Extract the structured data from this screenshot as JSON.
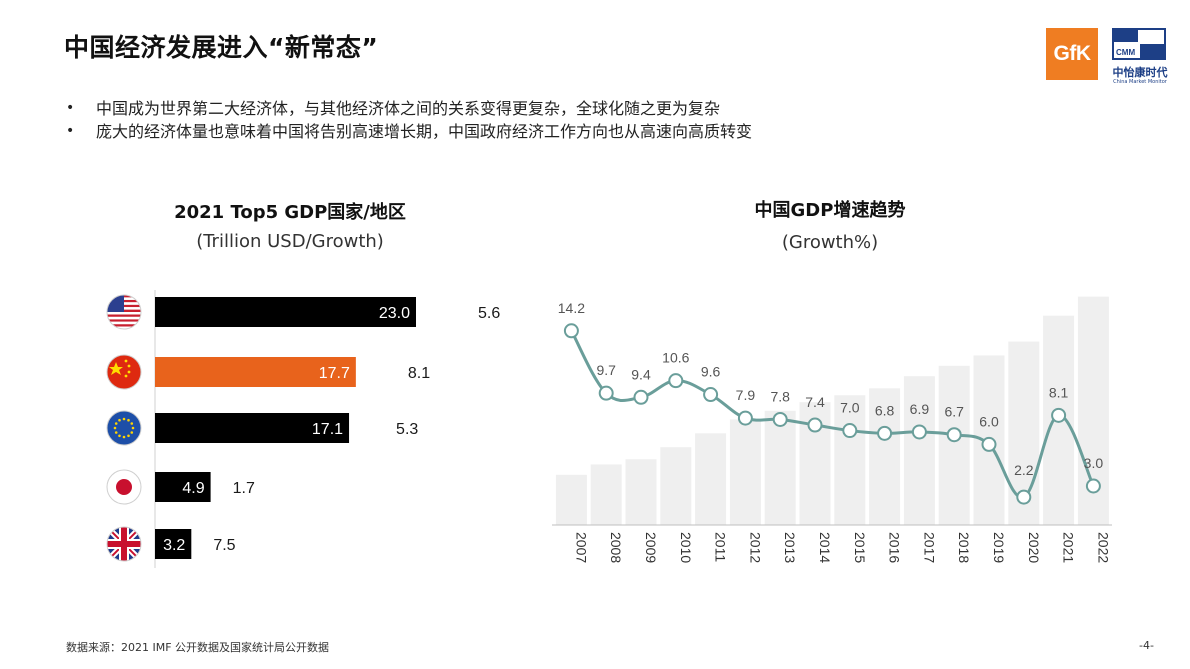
{
  "title": "中国经济发展进入“新常态”",
  "logos": {
    "gfk": "GfK",
    "cmm_abbr": "CMM",
    "cmm_name": "中怡康时代",
    "cmm_sub": "China Market Monitor"
  },
  "bullets": [
    "中国成为世界第二大经济体，与其他经济体之间的关系变得更复杂，全球化随之更为复杂",
    "庞大的经济体量也意味着中国将告别高速增长期，中国政府经济工作方向也从高速向高质转变"
  ],
  "footnote": "数据来源：2021 IMF 公开数据及国家统计局公开数据",
  "page_number": "-4-",
  "chart_data": [
    {
      "type": "bar",
      "title": "2021 Top5 GDP国家/地区",
      "subtitle": "(Trillion USD/Growth)",
      "orientation": "horizontal",
      "flag_icons": [
        "us-flag-icon",
        "china-flag-icon",
        "eu-flag-icon",
        "japan-flag-icon",
        "uk-flag-icon"
      ],
      "values": [
        23.0,
        17.7,
        17.1,
        4.9,
        3.2
      ],
      "value_labels": [
        "23.0",
        "17.7",
        "17.1",
        "4.9",
        "3.2"
      ],
      "growth_labels": [
        "5.6",
        "8.1",
        "5.3",
        "1.7",
        "7.5"
      ],
      "highlight_index": 1,
      "colors": {
        "default": "#000000",
        "highlight": "#e8631c"
      }
    },
    {
      "type": "line",
      "title": "中国GDP增速趋势",
      "subtitle": "(Growth%)",
      "x": [
        "2007",
        "2008",
        "2009",
        "2010",
        "2011",
        "2012",
        "2013",
        "2014",
        "2015",
        "2016",
        "2017",
        "2018",
        "2019",
        "2020",
        "2021",
        "2022"
      ],
      "y": [
        14.2,
        9.7,
        9.4,
        10.6,
        9.6,
        7.9,
        7.8,
        7.4,
        7.0,
        6.8,
        6.9,
        6.7,
        6.0,
        2.2,
        8.1,
        3.0
      ],
      "y_labels": [
        "14.2",
        "9.7",
        "9.4",
        "10.6",
        "9.6",
        "7.9",
        "7.8",
        "7.4",
        "7.0",
        "6.8",
        "6.9",
        "6.7",
        "6.0",
        "2.2",
        "8.1",
        "3.0"
      ],
      "background_bars_relative": [
        0.29,
        0.35,
        0.38,
        0.45,
        0.53,
        0.61,
        0.66,
        0.71,
        0.75,
        0.79,
        0.86,
        0.92,
        0.98,
        1.06,
        1.21,
        1.32
      ],
      "colors": {
        "line": "#6a9e9a",
        "bars": "#efefef"
      },
      "grid": false
    }
  ]
}
